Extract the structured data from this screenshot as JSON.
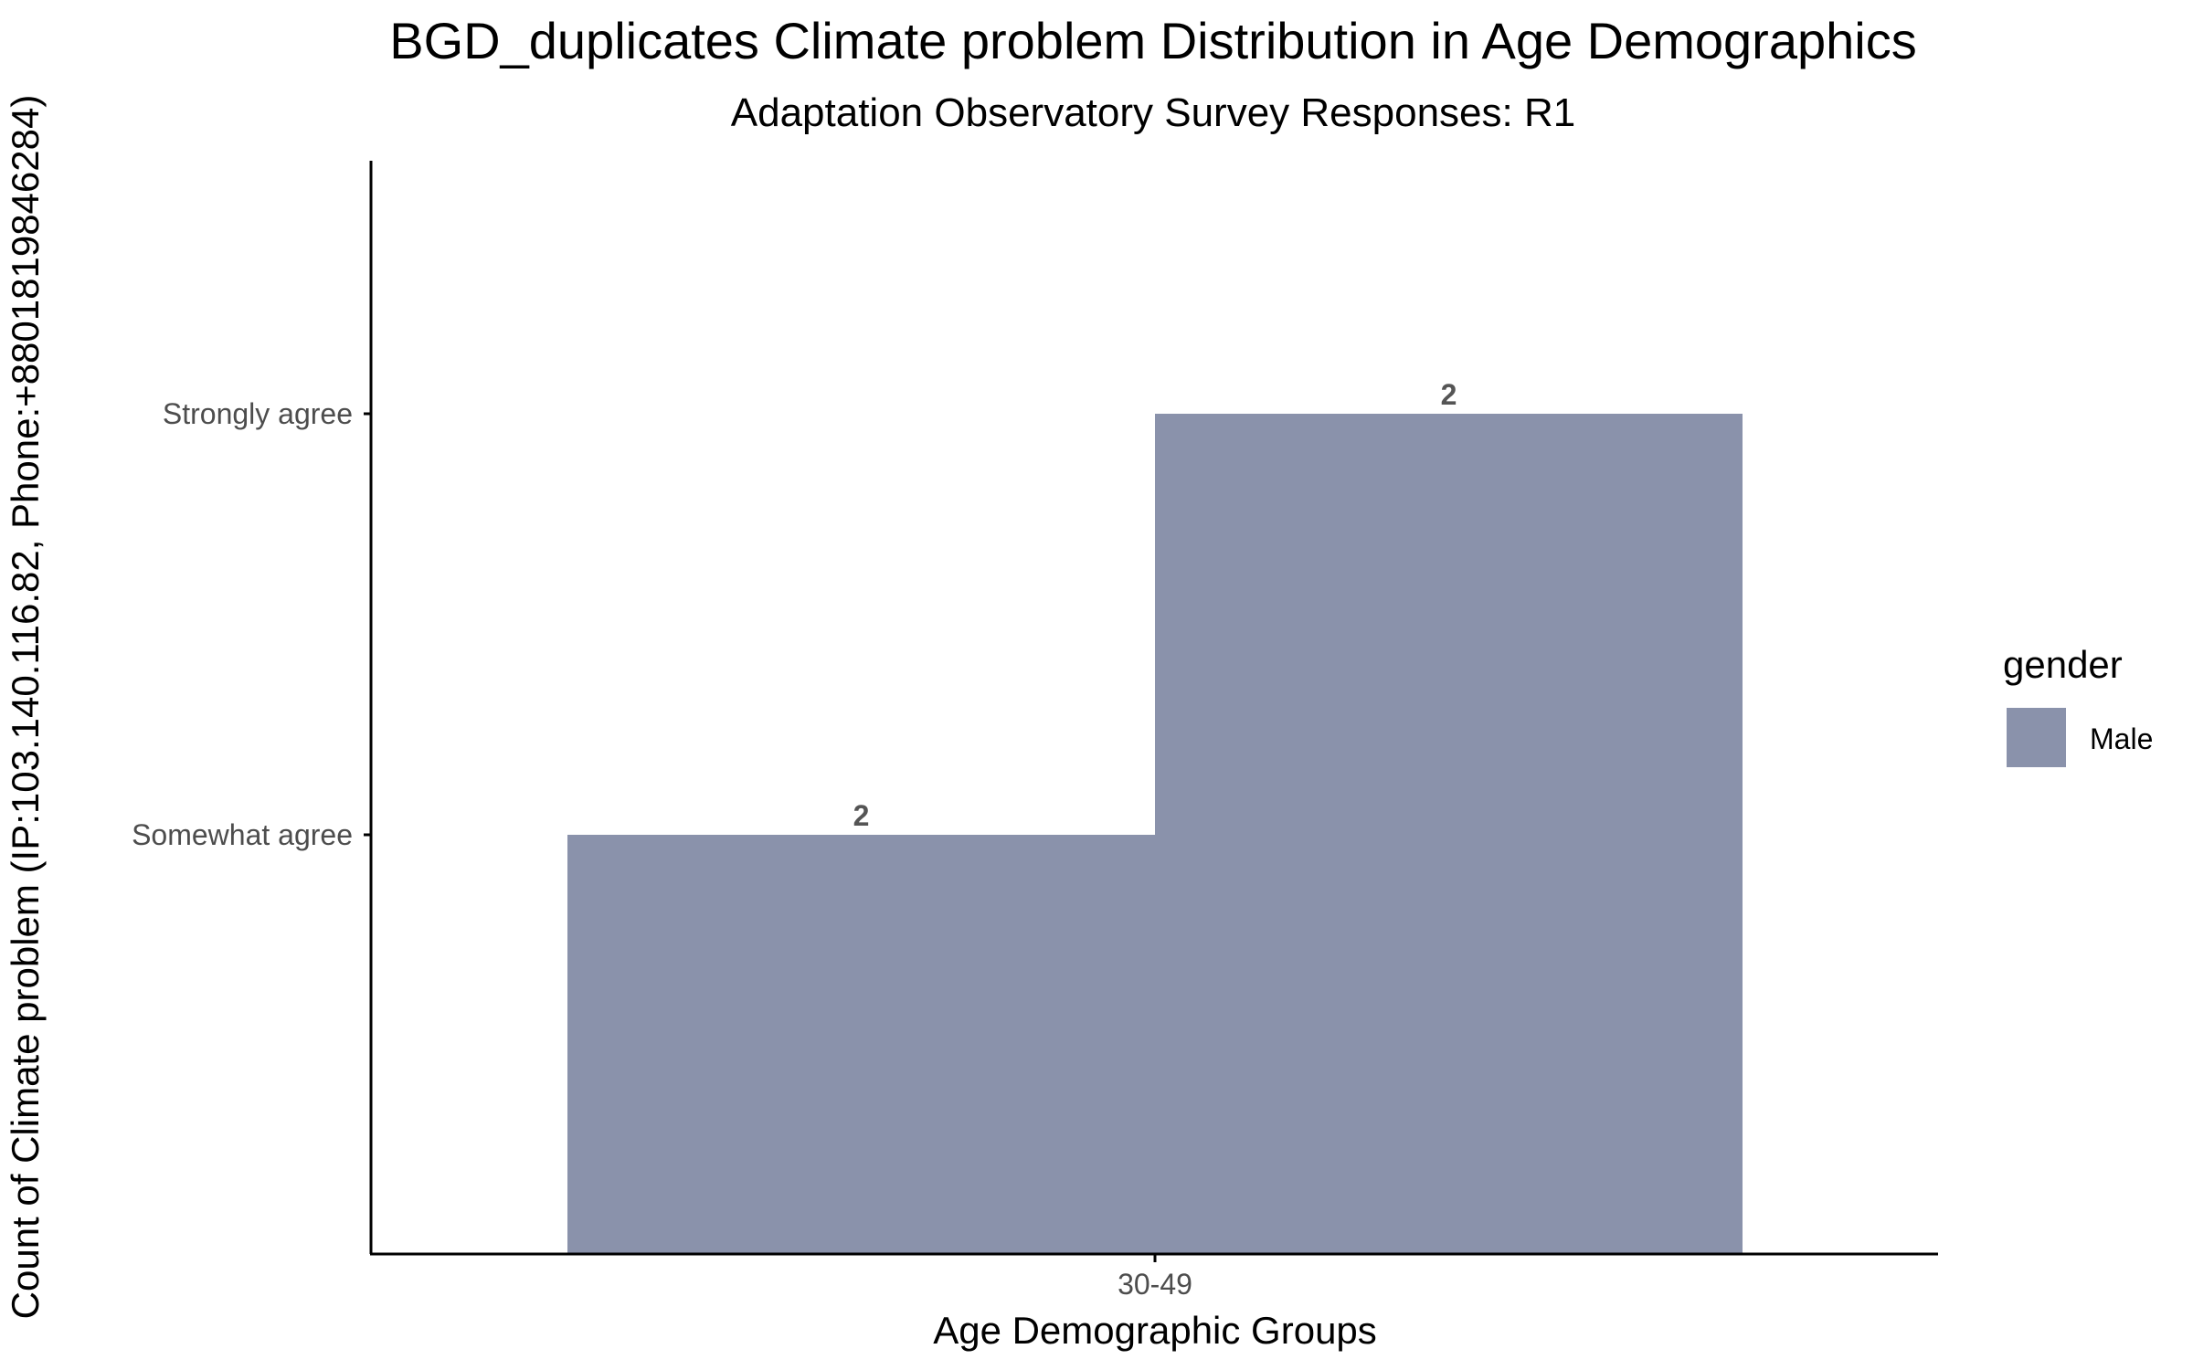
{
  "chart_data": {
    "type": "bar",
    "title": "BGD_duplicates Climate problem Distribution in Age Demographics",
    "subtitle": "Adaptation Observatory Survey Responses: R1",
    "xlabel": "Age Demographic Groups",
    "ylabel": "Count of Climate problem (IP:103.140.116.82, Phone:+8801819846284)",
    "categories": [
      "30-49"
    ],
    "y_categories": [
      "Somewhat agree",
      "Strongly agree"
    ],
    "y_tick_labels": [
      "Somewhat agree",
      "Strongly agree"
    ],
    "bars": [
      {
        "category": "30-49",
        "dodge_position": 1,
        "response": "Somewhat agree",
        "gender": "Male",
        "label": "2"
      },
      {
        "category": "30-49",
        "dodge_position": 2,
        "response": "Strongly agree",
        "gender": "Male",
        "label": "2"
      }
    ],
    "legend": {
      "title": "gender",
      "position": "right",
      "entries": [
        {
          "name": "Male",
          "color": "#8a92ab"
        }
      ]
    },
    "grid": false
  },
  "colors": {
    "bar_fill": "#8a92ab",
    "axis": "#000000",
    "tick_text": "#4d4d4d",
    "data_label": "#555555"
  }
}
